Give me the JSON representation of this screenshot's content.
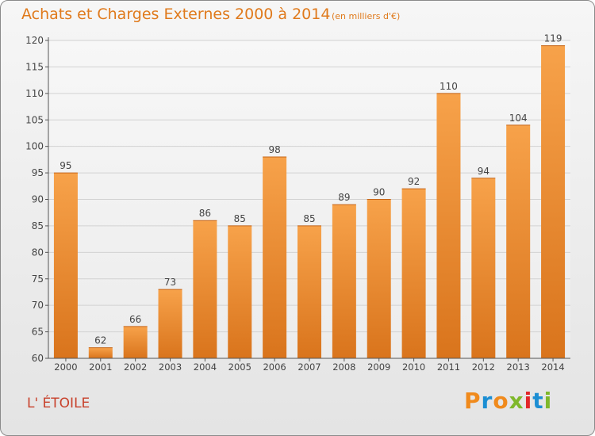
{
  "header": {
    "title": "Achats et Charges Externes 2000 à 2014",
    "subtitle": "(en milliers d'€)"
  },
  "footer": {
    "commune": "L' ÉTOILE",
    "logo_text": "Proxiti",
    "logo_letters": [
      "P",
      "r",
      "o",
      "x",
      "i",
      "t",
      "i"
    ]
  },
  "colors": {
    "bar_light": "#f7a24a",
    "bar_dark": "#d9741c",
    "title": "#e07a1c",
    "commune": "#c8412b",
    "logo": [
      "#f08a1c",
      "#1b8ed3",
      "#f08a1c",
      "#7fb82b",
      "#e2262a",
      "#1b8ed3",
      "#7fb82b"
    ]
  },
  "chart_data": {
    "type": "bar",
    "title": "Achats et Charges Externes 2000 à 2014",
    "subtitle": "(en milliers d'€)",
    "xlabel": "",
    "ylabel": "",
    "categories": [
      "2000",
      "2001",
      "2002",
      "2003",
      "2004",
      "2005",
      "2006",
      "2007",
      "2008",
      "2009",
      "2010",
      "2011",
      "2012",
      "2013",
      "2014"
    ],
    "values": [
      95,
      62,
      66,
      73,
      86,
      85,
      98,
      85,
      89,
      90,
      92,
      110,
      94,
      104,
      119
    ],
    "value_labels": [
      "95",
      "62",
      "66",
      "73",
      "86",
      "85",
      "98",
      "85",
      "89",
      "90",
      "92",
      "110",
      "94",
      "104",
      "119"
    ],
    "ylim": [
      60,
      120
    ],
    "yticks": [
      60,
      65,
      70,
      75,
      80,
      85,
      90,
      95,
      100,
      105,
      110,
      115,
      120
    ],
    "ytick_labels": [
      "60",
      "65",
      "70",
      "75",
      "80",
      "85",
      "90",
      "95",
      "100",
      "105",
      "110",
      "115",
      "120"
    ],
    "grid": true,
    "legend": "none"
  }
}
